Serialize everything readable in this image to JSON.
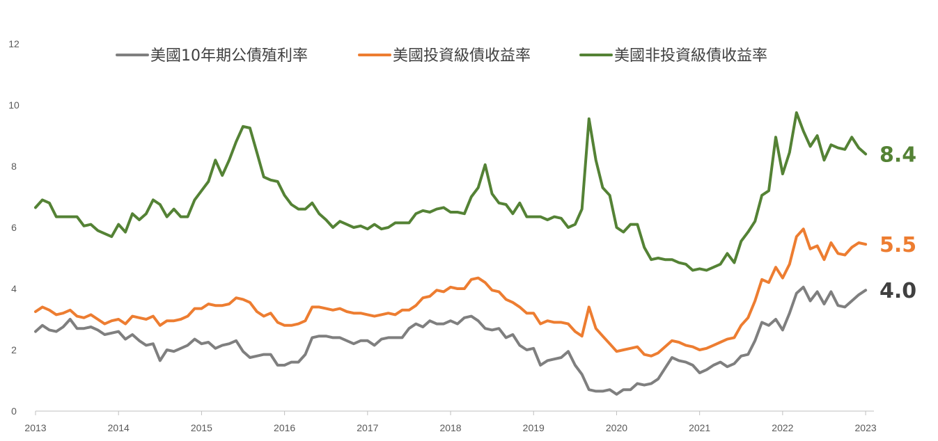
{
  "chart_data": {
    "type": "line",
    "title": "",
    "xlabel": "",
    "ylabel": "",
    "xlim": [
      2013,
      2023.1
    ],
    "ylim": [
      0,
      12
    ],
    "yticks": [
      "0",
      "2",
      "4",
      "6",
      "8",
      "10",
      "12"
    ],
    "xticks": [
      "2013",
      "2014",
      "2015",
      "2016",
      "2017",
      "2018",
      "2019",
      "2020",
      "2021",
      "2022",
      "2023"
    ],
    "grid": false,
    "legend_position": "top",
    "x": [
      2013.0,
      2013.083,
      2013.167,
      2013.25,
      2013.333,
      2013.417,
      2013.5,
      2013.583,
      2013.667,
      2013.75,
      2013.833,
      2013.917,
      2014.0,
      2014.083,
      2014.167,
      2014.25,
      2014.333,
      2014.417,
      2014.5,
      2014.583,
      2014.667,
      2014.75,
      2014.833,
      2014.917,
      2015.0,
      2015.083,
      2015.167,
      2015.25,
      2015.333,
      2015.417,
      2015.5,
      2015.583,
      2015.667,
      2015.75,
      2015.833,
      2015.917,
      2016.0,
      2016.083,
      2016.167,
      2016.25,
      2016.333,
      2016.417,
      2016.5,
      2016.583,
      2016.667,
      2016.75,
      2016.833,
      2016.917,
      2017.0,
      2017.083,
      2017.167,
      2017.25,
      2017.333,
      2017.417,
      2017.5,
      2017.583,
      2017.667,
      2017.75,
      2017.833,
      2017.917,
      2018.0,
      2018.083,
      2018.167,
      2018.25,
      2018.333,
      2018.417,
      2018.5,
      2018.583,
      2018.667,
      2018.75,
      2018.833,
      2018.917,
      2019.0,
      2019.083,
      2019.167,
      2019.25,
      2019.333,
      2019.417,
      2019.5,
      2019.583,
      2019.667,
      2019.75,
      2019.833,
      2019.917,
      2020.0,
      2020.083,
      2020.167,
      2020.25,
      2020.333,
      2020.417,
      2020.5,
      2020.583,
      2020.667,
      2020.75,
      2020.833,
      2020.917,
      2021.0,
      2021.083,
      2021.167,
      2021.25,
      2021.333,
      2021.417,
      2021.5,
      2021.583,
      2021.667,
      2021.75,
      2021.833,
      2021.917,
      2022.0,
      2022.083,
      2022.167,
      2022.25,
      2022.333,
      2022.417,
      2022.5,
      2022.583,
      2022.667,
      2022.75,
      2022.833,
      2022.917,
      2023.0
    ],
    "series": [
      {
        "name": "美國10年期公債殖利率",
        "color": "#7f7f7f",
        "end_label": "4.0",
        "end_label_color": "#404040",
        "values": [
          2.6,
          2.8,
          2.65,
          2.6,
          2.75,
          3.0,
          2.7,
          2.7,
          2.75,
          2.65,
          2.5,
          2.55,
          2.6,
          2.35,
          2.5,
          2.3,
          2.15,
          2.2,
          1.65,
          2.0,
          1.95,
          2.05,
          2.15,
          2.35,
          2.2,
          2.25,
          2.05,
          2.15,
          2.2,
          2.3,
          1.95,
          1.75,
          1.8,
          1.85,
          1.85,
          1.5,
          1.5,
          1.6,
          1.6,
          1.85,
          2.4,
          2.45,
          2.45,
          2.4,
          2.4,
          2.3,
          2.2,
          2.3,
          2.3,
          2.15,
          2.35,
          2.4,
          2.4,
          2.4,
          2.7,
          2.85,
          2.75,
          2.95,
          2.85,
          2.85,
          2.95,
          2.85,
          3.05,
          3.1,
          2.95,
          2.7,
          2.65,
          2.7,
          2.4,
          2.5,
          2.15,
          2.0,
          2.05,
          1.5,
          1.65,
          1.7,
          1.75,
          1.95,
          1.5,
          1.2,
          0.7,
          0.65,
          0.65,
          0.7,
          0.55,
          0.7,
          0.7,
          0.9,
          0.85,
          0.9,
          1.05,
          1.4,
          1.75,
          1.65,
          1.6,
          1.5,
          1.25,
          1.35,
          1.5,
          1.6,
          1.45,
          1.55,
          1.8,
          1.85,
          2.3,
          2.9,
          2.8,
          3.0,
          2.65,
          3.2,
          3.85,
          4.05,
          3.6,
          3.9,
          3.5,
          3.9,
          3.45,
          3.4,
          3.6,
          3.8,
          3.95
        ]
      },
      {
        "name": "美國投資級債收益率",
        "color": "#ed7d31",
        "end_label": "5.5",
        "end_label_color": "#ed7d31",
        "values": [
          3.25,
          3.4,
          3.3,
          3.15,
          3.2,
          3.3,
          3.1,
          3.05,
          3.15,
          3.0,
          2.85,
          2.95,
          3.0,
          2.85,
          3.1,
          3.05,
          3.0,
          3.1,
          2.8,
          2.95,
          2.95,
          3.0,
          3.1,
          3.35,
          3.35,
          3.5,
          3.45,
          3.45,
          3.5,
          3.7,
          3.65,
          3.55,
          3.25,
          3.1,
          3.2,
          2.9,
          2.8,
          2.8,
          2.85,
          2.95,
          3.4,
          3.4,
          3.35,
          3.3,
          3.35,
          3.25,
          3.2,
          3.2,
          3.15,
          3.1,
          3.15,
          3.2,
          3.15,
          3.3,
          3.3,
          3.45,
          3.7,
          3.75,
          3.95,
          3.9,
          4.05,
          4.0,
          4.0,
          4.3,
          4.35,
          4.2,
          3.95,
          3.9,
          3.65,
          3.55,
          3.4,
          3.2,
          3.2,
          2.85,
          2.95,
          2.9,
          2.9,
          2.85,
          2.6,
          2.45,
          3.4,
          2.7,
          2.45,
          2.2,
          1.95,
          2.0,
          2.05,
          2.1,
          1.85,
          1.8,
          1.9,
          2.1,
          2.3,
          2.25,
          2.15,
          2.1,
          2.0,
          2.05,
          2.15,
          2.25,
          2.35,
          2.4,
          2.8,
          3.05,
          3.6,
          4.3,
          4.2,
          4.7,
          4.35,
          4.8,
          5.7,
          5.95,
          5.3,
          5.4,
          4.95,
          5.5,
          5.15,
          5.1,
          5.35,
          5.5,
          5.45
        ]
      },
      {
        "name": "美國非投資級債收益率",
        "color": "#548235",
        "end_label": "8.4",
        "end_label_color": "#548235",
        "values": [
          6.65,
          6.9,
          6.8,
          6.35,
          6.35,
          6.35,
          6.35,
          6.05,
          6.1,
          5.9,
          5.8,
          5.7,
          6.1,
          5.85,
          6.45,
          6.25,
          6.45,
          6.9,
          6.75,
          6.35,
          6.6,
          6.35,
          6.35,
          6.9,
          7.2,
          7.5,
          8.2,
          7.7,
          8.2,
          8.8,
          9.3,
          9.25,
          8.45,
          7.65,
          7.55,
          7.5,
          7.05,
          6.75,
          6.6,
          6.6,
          6.8,
          6.45,
          6.25,
          6.0,
          6.2,
          6.1,
          6.0,
          6.05,
          5.95,
          6.1,
          5.95,
          6.0,
          6.15,
          6.15,
          6.15,
          6.45,
          6.55,
          6.5,
          6.6,
          6.65,
          6.5,
          6.5,
          6.45,
          7.0,
          7.3,
          8.05,
          7.1,
          6.8,
          6.75,
          6.45,
          6.8,
          6.35,
          6.35,
          6.35,
          6.25,
          6.35,
          6.3,
          6.0,
          6.1,
          6.6,
          9.55,
          8.2,
          7.3,
          7.05,
          6.0,
          5.85,
          6.1,
          6.1,
          5.35,
          4.95,
          5.0,
          4.95,
          4.95,
          4.85,
          4.8,
          4.6,
          4.65,
          4.6,
          4.7,
          4.8,
          5.15,
          4.85,
          5.55,
          5.85,
          6.2,
          7.05,
          7.2,
          8.95,
          7.75,
          8.45,
          9.75,
          9.15,
          8.65,
          9.0,
          8.2,
          8.7,
          8.6,
          8.55,
          8.95,
          8.6,
          8.4
        ]
      }
    ]
  }
}
